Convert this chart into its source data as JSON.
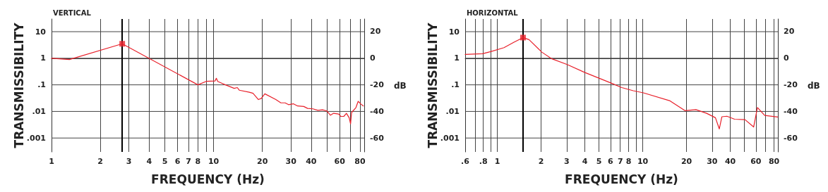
{
  "chart_data": [
    {
      "type": "line",
      "title": "VERTICAL",
      "xlabel": "FREQUENCY (Hz)",
      "ylabel": "TRANSMISSIBILITY",
      "y2label": "dB",
      "log": "xy",
      "grid": true,
      "marker": "none",
      "line_style": "solid",
      "xlim": [
        1,
        85
      ],
      "xticks": [
        1,
        2,
        3,
        4,
        5,
        6,
        7,
        8,
        {
          "value": 9,
          "label": null
        },
        10,
        20,
        30,
        40,
        {
          "value": 50,
          "label": null
        },
        60,
        {
          "value": 70,
          "label": null
        },
        80
      ],
      "ylim": [
        0.0003,
        30
      ],
      "yticks": [
        {
          "value": 0.001,
          "label": ".001"
        },
        {
          "value": 0.01,
          "label": ".01"
        },
        {
          "value": 0.1,
          "label": ".1"
        },
        {
          "value": 1,
          "label": "1"
        },
        {
          "value": 10,
          "label": "10"
        }
      ],
      "y2lim": [
        -70.5,
        29.5
      ],
      "y2ticks": [
        -60,
        -40,
        -20,
        0,
        20
      ],
      "ref_lines": [
        {
          "axis": "x",
          "value": 2.73,
          "color": "#000000"
        }
      ],
      "series": [
        {
          "color": "#e8202a",
          "x": [
            1,
            1.29,
            2.73,
            8,
            9,
            10.2,
            10.4,
            10.6,
            11.4,
            13.4,
            14,
            14.4,
            16.6,
            17.5,
            18.9,
            19.7,
            20.7,
            24.2,
            26,
            27.6,
            29,
            31,
            33,
            36,
            38,
            41,
            44,
            47,
            50,
            52.6,
            55,
            59,
            61,
            63.6,
            66,
            68.6,
            70,
            71,
            75.5,
            78,
            81,
            84
          ],
          "values": [
            1,
            0.9,
            3.5,
            0.1,
            0.135,
            0.14,
            0.176,
            0.135,
            0.11,
            0.074,
            0.079,
            0.063,
            0.053,
            0.048,
            0.028,
            0.031,
            0.046,
            0.028,
            0.021,
            0.021,
            0.018,
            0.0194,
            0.016,
            0.0154,
            0.013,
            0.0125,
            0.011,
            0.0115,
            0.0104,
            0.0072,
            0.0085,
            0.008,
            0.0065,
            0.0065,
            0.0085,
            0.0058,
            0.0034,
            0.0091,
            0.0139,
            0.024,
            0.019,
            0.016
          ]
        },
        {
          "type": "scatter",
          "marker": "square",
          "color": "#e8202a",
          "x": [
            2.73
          ],
          "values": [
            3.5
          ]
        }
      ]
    },
    {
      "type": "line",
      "title": "HORIZONTAL",
      "xlabel": "FREQUENCY (Hz)",
      "ylabel": "TRANSMISSIBILITY",
      "y2label": "dB",
      "log": "xy",
      "grid": true,
      "marker": "none",
      "line_style": "solid",
      "xlim": [
        0.6,
        85
      ],
      "xticks": [
        {
          "value": 0.6,
          "label": ".6"
        },
        {
          "value": 0.7,
          "label": null
        },
        {
          "value": 0.8,
          "label": ".8"
        },
        {
          "value": 0.9,
          "label": null
        },
        1,
        2,
        3,
        4,
        5,
        6,
        7,
        8,
        {
          "value": 9,
          "label": null
        },
        10,
        20,
        30,
        40,
        {
          "value": 50,
          "label": null
        },
        60,
        {
          "value": 70,
          "label": null
        },
        80
      ],
      "ylim": [
        0.0003,
        30
      ],
      "yticks": [
        {
          "value": 0.001,
          "label": ".001"
        },
        {
          "value": 0.01,
          "label": ".01"
        },
        {
          "value": 0.1,
          "label": ".1"
        },
        {
          "value": 1,
          "label": "1"
        },
        {
          "value": 10,
          "label": "10"
        }
      ],
      "y2lim": [
        -70.5,
        29.5
      ],
      "y2ticks": [
        -60,
        -40,
        -20,
        0,
        20
      ],
      "ref_lines": [
        {
          "axis": "x",
          "value": 1.5,
          "color": "#000000"
        }
      ],
      "series": [
        {
          "color": "#e8202a",
          "x": [
            0.6,
            0.79,
            0.9,
            1.11,
            1.3,
            1.5,
            1.65,
            2.02,
            2.37,
            3.02,
            4,
            5.1,
            6.1,
            7.16,
            8.6,
            10.1,
            15.4,
            19.5,
            23.2,
            27.5,
            31.6,
            33.6,
            35,
            37.9,
            42.8,
            50.5,
            57.9,
            61.5,
            69,
            84.8
          ],
          "values": [
            1.4,
            1.48,
            1.78,
            2.5,
            4,
            6,
            5,
            1.7,
            0.95,
            0.58,
            0.29,
            0.17,
            0.115,
            0.079,
            0.06,
            0.05,
            0.025,
            0.0107,
            0.0117,
            0.0085,
            0.0058,
            0.0022,
            0.0063,
            0.0066,
            0.0051,
            0.0049,
            0.0026,
            0.0141,
            0.0071,
            0.0062
          ]
        },
        {
          "type": "scatter",
          "marker": "square",
          "color": "#e8202a",
          "x": [
            1.5
          ],
          "values": [
            6
          ]
        }
      ]
    }
  ]
}
